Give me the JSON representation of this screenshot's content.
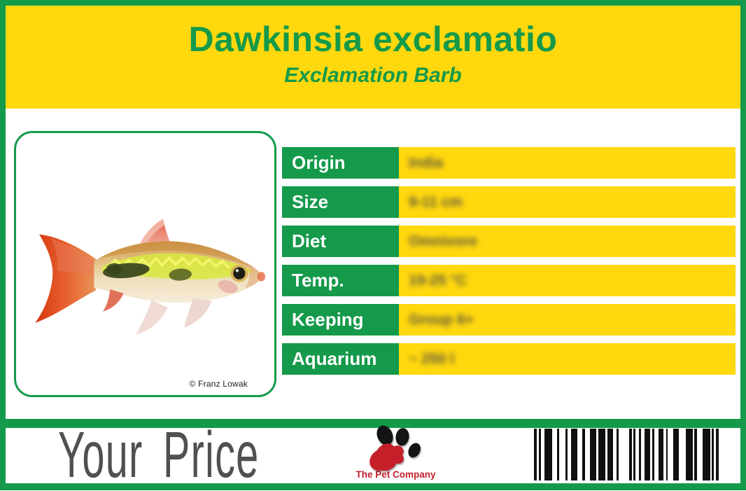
{
  "colors": {
    "green": "#149A4A",
    "yellow": "#FFD80E",
    "gray": "#4F5052",
    "red": "#C21F2C"
  },
  "header": {
    "title": "Dawkinsia exclamatio",
    "subtitle": "Exclamation Barb"
  },
  "photo": {
    "subject": "exclamation-barb-fish",
    "credit": "© Franz Lowak"
  },
  "specs": [
    {
      "label": "Origin",
      "value": "India"
    },
    {
      "label": "Size",
      "value": "9-11 cm"
    },
    {
      "label": "Diet",
      "value": "Omnivore"
    },
    {
      "label": "Temp.",
      "value": "19-25 °C"
    },
    {
      "label": "Keeping",
      "value": "Group 6+"
    },
    {
      "label": "Aquarium",
      "value": "~ 250 l"
    }
  ],
  "footer": {
    "price_label": "Your Price",
    "brand": "The Pet Company"
  },
  "barcode": {
    "bars": [
      [
        4,
        4
      ],
      [
        3,
        6
      ],
      [
        12,
        7
      ],
      [
        4,
        10
      ],
      [
        3,
        5
      ],
      [
        10,
        8
      ],
      [
        4,
        8
      ],
      [
        10,
        4
      ],
      [
        10,
        4
      ],
      [
        9,
        5
      ],
      [
        4,
        16
      ],
      [
        4,
        3
      ],
      [
        3,
        5
      ],
      [
        4,
        5
      ],
      [
        9,
        3
      ],
      [
        4,
        6
      ],
      [
        8,
        4
      ],
      [
        3,
        9
      ],
      [
        8,
        11
      ],
      [
        11,
        3
      ],
      [
        4,
        9
      ],
      [
        12,
        2
      ],
      [
        4,
        3
      ],
      [
        4,
        0
      ]
    ]
  }
}
